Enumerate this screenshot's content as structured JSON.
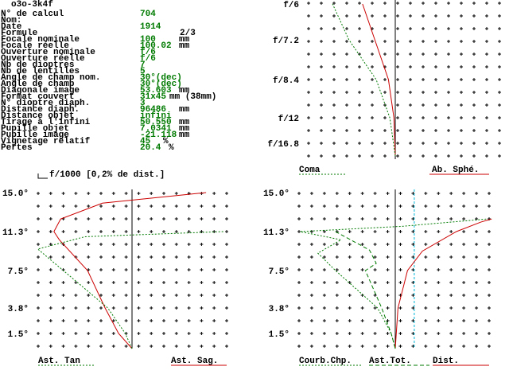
{
  "header": {
    "title": "o3o-3k4f"
  },
  "parameters": [
    {
      "label": "N° de calcul",
      "value": "704",
      "unit": ""
    },
    {
      "label": "Nom:",
      "value": "",
      "unit": ""
    },
    {
      "label": "Date",
      "value": "1914",
      "unit": ""
    },
    {
      "label": "Formule",
      "value": "",
      "unit": "2/3"
    },
    {
      "label": "Focale nominale",
      "value": "100",
      "unit": "mm"
    },
    {
      "label": "Focale réelle",
      "value": "100.02",
      "unit": "mm"
    },
    {
      "label": "Ouverture nominale",
      "value": "f/6",
      "unit": ""
    },
    {
      "label": "Ouverture réelle",
      "value": "f/6",
      "unit": ""
    },
    {
      "label": "Nb de dioptres",
      "value": "7",
      "unit": ""
    },
    {
      "label": "Nb de lentilles",
      "value": "5",
      "unit": ""
    },
    {
      "label": "Angle de champ nom.",
      "value": "30°(dec)",
      "unit": ""
    },
    {
      "label": "Angle de champ",
      "value": "30°(dec)",
      "unit": ""
    },
    {
      "label": "Diagonale image",
      "value": "53.603",
      "unit": "mm"
    },
    {
      "label": "Format couvert",
      "value": "31x45",
      "unit": "mm (38mm)"
    },
    {
      "label": "N° dioptre diaph.",
      "value": "3",
      "unit": ""
    },
    {
      "label": "Distance diaph.",
      "value": "96486",
      "unit": "mm"
    },
    {
      "label": "Distance objet",
      "value": "infini",
      "unit": ""
    },
    {
      "label": "Tirage à l'infini",
      "value": "50.550",
      "unit": "mm"
    },
    {
      "label": "Pupille objet",
      "value": "7.0341",
      "unit": "mm"
    },
    {
      "label": "Pupille image",
      "value": "-21.118",
      "unit": "mm"
    },
    {
      "label": "Vignetage relatif",
      "value": "45",
      "unit": "%"
    },
    {
      "label": "Pertes",
      "value": "20.4",
      "unit": "%"
    }
  ],
  "scale_note": "f/1000 [0,2% de dist.]",
  "colors": {
    "red": "#cc0000",
    "green": "#007a00",
    "cyan": "#00b8d8",
    "black": "#000000"
  },
  "chart_data": [
    {
      "type": "line",
      "panel": "coma-spherical",
      "y_tick_labels": [
        "f/6",
        "f/7.2",
        "f/8.4",
        "f/12",
        "f/16.8"
      ],
      "y_tick_values": [
        0.167,
        0.139,
        0.119,
        0.083,
        0.06
      ],
      "legend": [
        {
          "name": "Coma",
          "color": "#007a00",
          "style": "dotted"
        },
        {
          "name": "Ab. Sphé.",
          "color": "#cc0000",
          "style": "solid"
        }
      ],
      "x_range": [
        -7,
        7
      ],
      "series": [
        {
          "name": "Ab. Sphé.",
          "color": "#cc0000",
          "points": [
            [
              0,
              0.06
            ],
            [
              -0.1,
              0.083
            ],
            [
              -0.5,
              0.119
            ],
            [
              -1.5,
              0.139
            ],
            [
              -2.4,
              0.167
            ]
          ]
        },
        {
          "name": "Coma",
          "color": "#007a00",
          "points": [
            [
              0,
              0.06
            ],
            [
              -0.4,
              0.083
            ],
            [
              -1.4,
              0.119
            ],
            [
              -3.4,
              0.139
            ],
            [
              -4.6,
              0.167
            ]
          ]
        }
      ]
    },
    {
      "type": "line",
      "panel": "astigmatism",
      "y_tick_labels": [
        "15.0°",
        "11.3°",
        "7.5°",
        "3.8°",
        "1.5°"
      ],
      "y_tick_values": [
        15.0,
        11.3,
        7.5,
        3.8,
        1.5
      ],
      "legend": [
        {
          "name": "Ast. Tan",
          "color": "#007a00",
          "style": "dotted"
        },
        {
          "name": "Ast. Sag.",
          "color": "#cc0000",
          "style": "solid"
        }
      ],
      "x_range": [
        -7,
        7
      ],
      "series": [
        {
          "name": "Ast. Sag.",
          "color": "#cc0000",
          "points": [
            [
              0,
              0
            ],
            [
              -1.0,
              1.5
            ],
            [
              -2.0,
              3.8
            ],
            [
              -3.3,
              7.5
            ],
            [
              -5.4,
              10.5
            ],
            [
              -5.8,
              11.3
            ],
            [
              -5.3,
              12.5
            ],
            [
              -2.2,
              14.0
            ],
            [
              5.5,
              15.0
            ]
          ]
        },
        {
          "name": "Ast. Tan",
          "color": "#007a00",
          "points": [
            [
              0,
              0
            ],
            [
              -0.5,
              1.5
            ],
            [
              -1.8,
              3.8
            ],
            [
              -5.1,
              7.5
            ],
            [
              -7.0,
              9.6
            ],
            [
              -3.5,
              10.8
            ],
            [
              6.8,
              11.3
            ]
          ]
        }
      ]
    },
    {
      "type": "line",
      "panel": "field-distortion",
      "y_tick_labels": [
        "15.0°",
        "11.3°",
        "7.5°",
        "3.8°",
        "1.5°"
      ],
      "y_tick_values": [
        15.0,
        11.3,
        7.5,
        3.8,
        1.5
      ],
      "legend": [
        {
          "name": "Courb.Chp.",
          "color": "#007a00",
          "style": "dotted"
        },
        {
          "name": "Ast.Tot.",
          "color": "#007a00",
          "style": "dashed"
        },
        {
          "name": "Dist.",
          "color": "#cc0000",
          "style": "solid"
        }
      ],
      "x_range": [
        -7,
        7
      ],
      "series": [
        {
          "name": "Dist.",
          "color": "#cc0000",
          "points": [
            [
              0,
              0
            ],
            [
              0.2,
              3.8
            ],
            [
              0.9,
              7.5
            ],
            [
              2.0,
              9.4
            ],
            [
              4.5,
              11.3
            ],
            [
              6.3,
              12.2
            ],
            [
              7.1,
              12.5
            ]
          ]
        },
        {
          "name": "Courb.Chp.",
          "color": "#007a00",
          "points": [
            [
              0,
              0
            ],
            [
              -0.3,
              1.5
            ],
            [
              -1.3,
              3.8
            ],
            [
              -4.4,
              7.5
            ],
            [
              -5.7,
              9.2
            ],
            [
              -4.0,
              10.5
            ],
            [
              -7.0,
              11.3
            ],
            [
              0.5,
              11.8
            ],
            [
              6.8,
              12.5
            ]
          ]
        },
        {
          "name": "Ast.Tot.",
          "color": "#007a00",
          "points": [
            [
              0,
              0
            ],
            [
              -0.3,
              1.5
            ],
            [
              -1.0,
              3.8
            ],
            [
              -2.2,
              7.5
            ],
            [
              -1.4,
              8.2
            ],
            [
              -1.9,
              9.5
            ],
            [
              -4.4,
              11.3
            ]
          ]
        }
      ],
      "marker_x": 1.4
    }
  ]
}
